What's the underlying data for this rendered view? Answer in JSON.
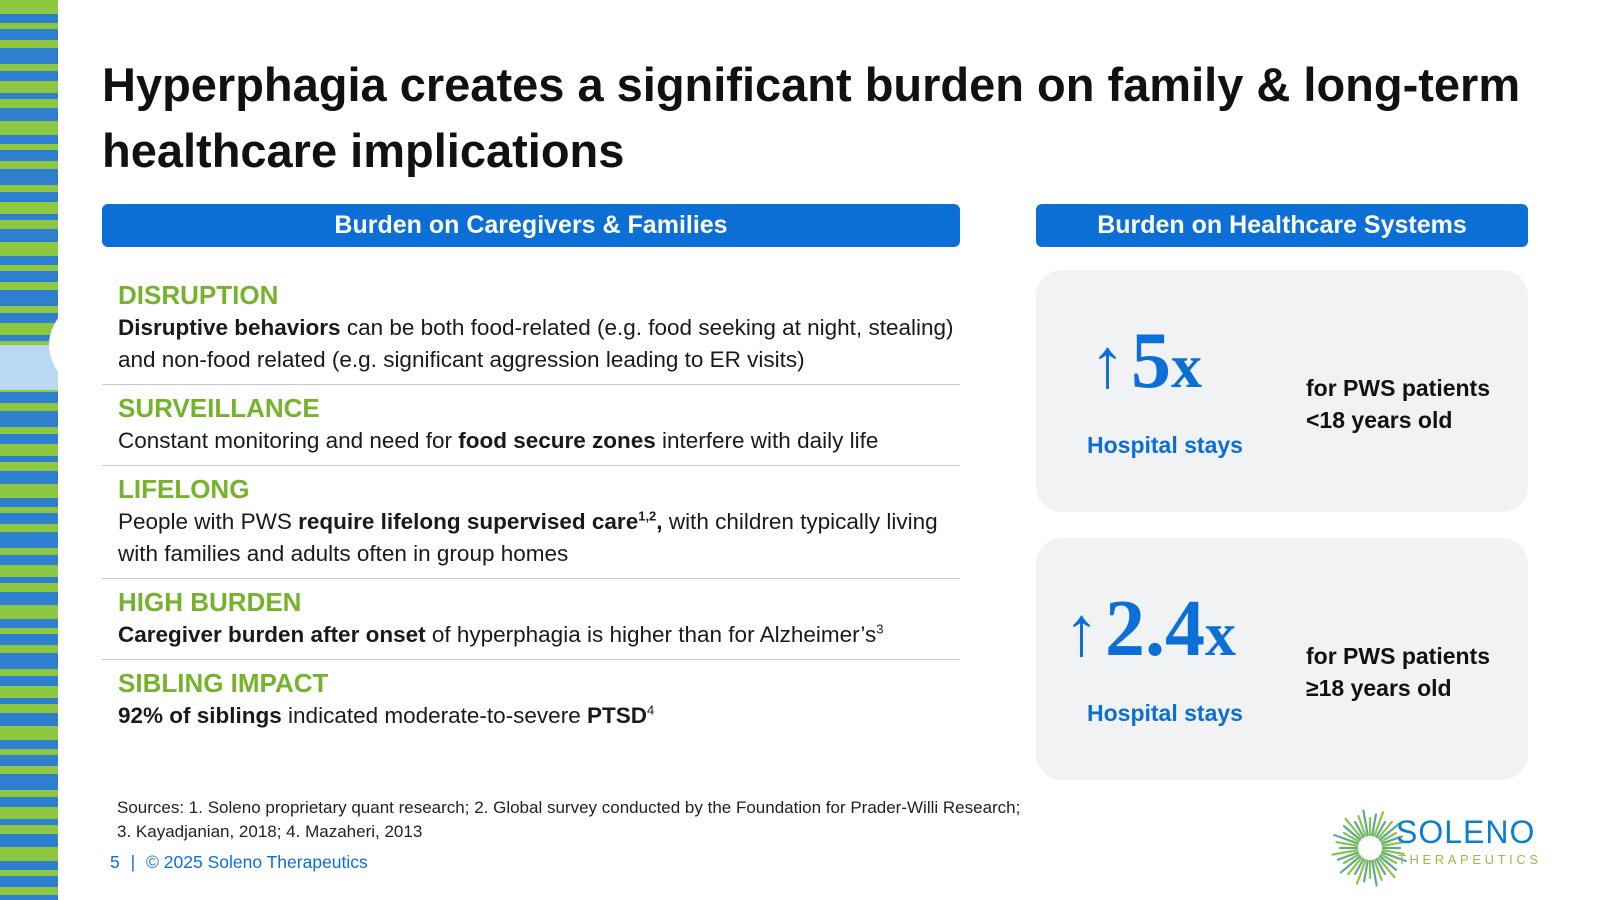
{
  "slide": {
    "title": "Hyperphagia creates a significant burden on family & long-term healthcare implications"
  },
  "left_panel": {
    "header": "Burden on Caregivers & Families",
    "items": [
      {
        "heading": "DISRUPTION",
        "segments": [
          {
            "text": "Disruptive behaviors",
            "bold": true
          },
          {
            "text": " can be both food-related (e.g. food seeking at night, stealing) and non-food related (e.g. significant aggression leading to ER visits)",
            "bold": false
          }
        ]
      },
      {
        "heading": "SURVEILLANCE",
        "segments": [
          {
            "text": "Constant monitoring and need for ",
            "bold": false
          },
          {
            "text": "food secure zones",
            "bold": true
          },
          {
            "text": " interfere with daily life",
            "bold": false
          }
        ]
      },
      {
        "heading": "LIFELONG",
        "segments": [
          {
            "text": "People with PWS ",
            "bold": false
          },
          {
            "text": "require lifelong supervised care",
            "bold": true
          },
          {
            "text": "1,2",
            "bold": true,
            "sup": true
          },
          {
            "text": ",",
            "bold": true
          },
          {
            "text": " with children typically living with families and adults often in group homes",
            "bold": false
          }
        ]
      },
      {
        "heading": "HIGH BURDEN",
        "segments": [
          {
            "text": "Caregiver burden after onset",
            "bold": true
          },
          {
            "text": " of hyperphagia is higher than for Alzheimer’s",
            "bold": false
          },
          {
            "text": "3",
            "bold": false,
            "sup": true
          }
        ]
      },
      {
        "heading": "SIBLING IMPACT",
        "segments": [
          {
            "text": "92% of siblings",
            "bold": true
          },
          {
            "text": " indicated moderate-to-severe ",
            "bold": false
          },
          {
            "text": "PTSD",
            "bold": true
          },
          {
            "text": "4",
            "bold": false,
            "sup": true
          }
        ]
      }
    ]
  },
  "right_panel": {
    "header": "Burden on Healthcare Systems",
    "stats": [
      {
        "arrow": "↑",
        "value": "5",
        "suffix": "x",
        "label": "Hospital stays",
        "desc_line1": "for PWS patients",
        "desc_line2": "<18 years old"
      },
      {
        "arrow": "↑",
        "value": "2.4",
        "suffix": "x",
        "label": "Hospital stays",
        "desc_line1": "for PWS patients",
        "desc_line2": "≥18 years old"
      }
    ]
  },
  "sources": {
    "line1": "Sources: 1. Soleno proprietary quant research; 2. Global survey conducted by the Foundation for Prader-Willi Research;",
    "line2": "3. Kayadjanian, 2018; 4. Mazaheri, 2013"
  },
  "footer": {
    "page_number": "5",
    "separator": "|",
    "copyright": "© 2025 Soleno Therapeutics"
  },
  "logo": {
    "name": "SOLENO",
    "subtitle": "THERAPEUTICS",
    "icon": "sunburst-logo-icon"
  },
  "colors": {
    "accent_blue": "#0b6fd6",
    "accent_green": "#76b32c",
    "card_bg": "#f1f2f4",
    "strip_green": "#8dc63f",
    "strip_blue": "#2e7fd0"
  }
}
